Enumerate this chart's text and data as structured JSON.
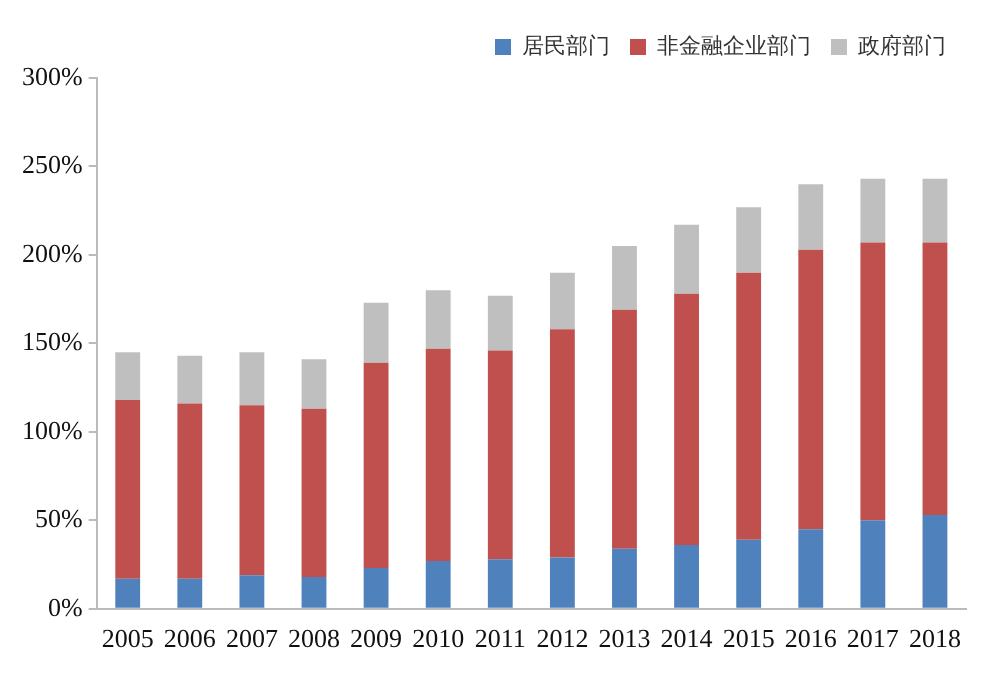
{
  "chart_data": {
    "type": "bar",
    "stacked": true,
    "categories": [
      "2005",
      "2006",
      "2007",
      "2008",
      "2009",
      "2010",
      "2011",
      "2012",
      "2013",
      "2014",
      "2015",
      "2016",
      "2017",
      "2018"
    ],
    "series": [
      {
        "name": "居民部门",
        "color": "#4f81bd",
        "values": [
          17,
          17,
          19,
          18,
          23,
          27,
          28,
          29,
          34,
          36,
          39,
          45,
          50,
          53
        ]
      },
      {
        "name": "非金融企业部门",
        "color": "#c0504d",
        "values": [
          101,
          99,
          96,
          95,
          116,
          120,
          118,
          129,
          135,
          142,
          151,
          158,
          157,
          154
        ]
      },
      {
        "name": "政府部门",
        "color": "#bfbfbf",
        "values": [
          27,
          27,
          30,
          28,
          34,
          33,
          31,
          32,
          36,
          39,
          37,
          37,
          36,
          36
        ]
      }
    ],
    "ylim": [
      0,
      300
    ],
    "yticks": [
      {
        "value": 0,
        "label": "0%"
      },
      {
        "value": 50,
        "label": "50%"
      },
      {
        "value": 100,
        "label": "100%"
      },
      {
        "value": 150,
        "label": "150%"
      },
      {
        "value": 200,
        "label": "200%"
      },
      {
        "value": 250,
        "label": "250%"
      },
      {
        "value": 300,
        "label": "300%"
      }
    ],
    "grid": false,
    "legend": "top"
  }
}
